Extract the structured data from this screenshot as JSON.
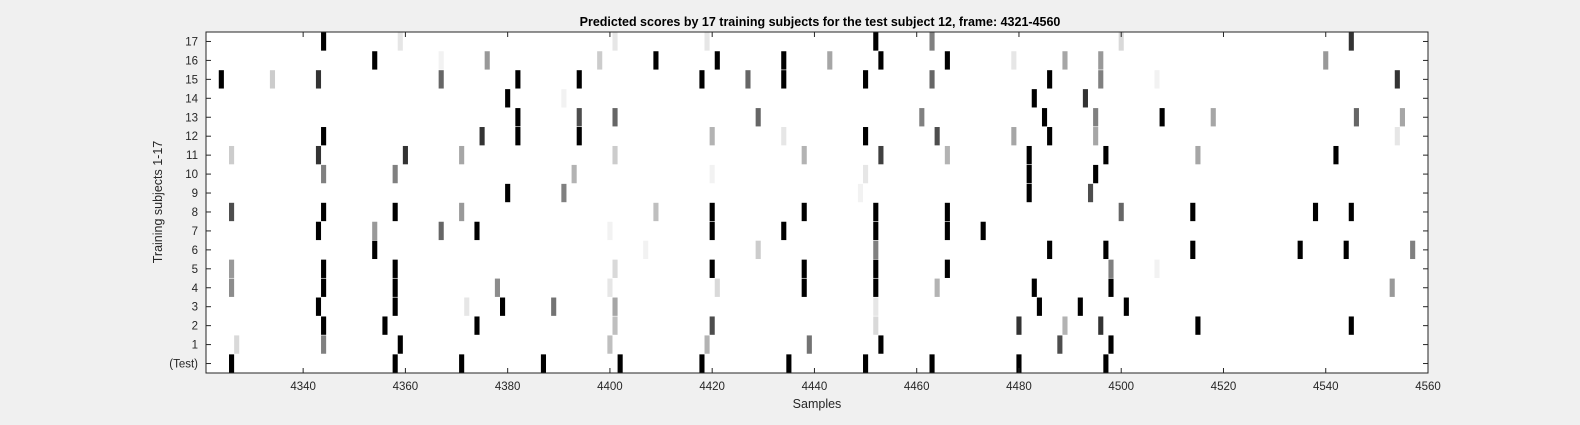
{
  "chart_data": {
    "type": "heatmap",
    "title": "Predicted scores by 17 training subjects for the test subject 12, frame: 4321-4560",
    "xlabel": "Samples",
    "ylabel": "Training subjects 1-17",
    "xlim": [
      4321,
      4560
    ],
    "x_ticks": [
      "4340",
      "4360",
      "4380",
      "4400",
      "4420",
      "4440",
      "4460",
      "4480",
      "4500",
      "4520",
      "4540",
      "4560"
    ],
    "y_labels": [
      "(Test)",
      "1",
      "2",
      "3",
      "4",
      "5",
      "6",
      "7",
      "8",
      "9",
      "10",
      "11",
      "12",
      "13",
      "14",
      "15",
      "16",
      "17"
    ],
    "colormap": "gray (1 = black, 0 = white)",
    "rows": [
      {
        "label": "(Test)",
        "x": [
          4326,
          4358,
          4371,
          4387,
          4402,
          4418,
          4435,
          4450,
          4463,
          4480,
          4497
        ],
        "v": [
          1,
          1,
          1,
          1,
          1,
          1,
          1,
          1,
          1,
          1,
          1
        ]
      },
      {
        "label": "1",
        "x": [
          4327,
          4344,
          4359,
          4400,
          4419,
          4439,
          4453,
          4488,
          4498
        ],
        "v": [
          0.15,
          0.5,
          1,
          0.25,
          0.3,
          0.55,
          1,
          0.7,
          1
        ]
      },
      {
        "label": "2",
        "x": [
          4344,
          4356,
          4374,
          4401,
          4420,
          4452,
          4480,
          4489,
          4496,
          4515,
          4545
        ],
        "v": [
          1,
          1,
          1,
          0.25,
          0.7,
          0.15,
          0.8,
          0.3,
          0.8,
          1,
          1
        ]
      },
      {
        "label": "3",
        "x": [
          4343,
          4358,
          4372,
          4379,
          4389,
          4401,
          4452,
          4484,
          4492,
          4501
        ],
        "v": [
          1,
          1,
          0.1,
          1,
          0.55,
          0.35,
          0.1,
          1,
          1,
          1
        ]
      },
      {
        "label": "4",
        "x": [
          4326,
          4344,
          4358,
          4378,
          4400,
          4421,
          4438,
          4452,
          4464,
          4483,
          4498,
          4553
        ],
        "v": [
          0.45,
          1,
          1,
          0.45,
          0.1,
          0.15,
          1,
          1,
          0.3,
          1,
          1,
          0.4
        ]
      },
      {
        "label": "5",
        "x": [
          4326,
          4344,
          4358,
          4401,
          4420,
          4438,
          4452,
          4466,
          4498,
          4507
        ],
        "v": [
          0.4,
          1,
          1,
          0.15,
          1,
          1,
          1,
          1,
          0.5,
          0.05
        ]
      },
      {
        "label": "6",
        "x": [
          4354,
          4407,
          4429,
          4452,
          4486,
          4497,
          4514,
          4535,
          4544,
          4557
        ],
        "v": [
          1,
          0.05,
          0.2,
          0.5,
          1,
          1,
          1,
          1,
          1,
          0.5
        ]
      },
      {
        "label": "7",
        "x": [
          4343,
          4354,
          4367,
          4374,
          4400,
          4420,
          4434,
          4452,
          4466,
          4473
        ],
        "v": [
          1,
          0.4,
          0.6,
          1,
          0.05,
          1,
          1,
          1,
          1,
          1
        ]
      },
      {
        "label": "8",
        "x": [
          4326,
          4344,
          4358,
          4371,
          4409,
          4420,
          4438,
          4452,
          4466,
          4500,
          4514,
          4538,
          4545
        ],
        "v": [
          0.7,
          1,
          1,
          0.4,
          0.25,
          1,
          1,
          1,
          1,
          0.6,
          1,
          1,
          1
        ]
      },
      {
        "label": "9",
        "x": [
          4380,
          4391,
          4449,
          4482,
          4494
        ],
        "v": [
          1,
          0.5,
          0.05,
          1,
          0.7
        ]
      },
      {
        "label": "10",
        "x": [
          4344,
          4358,
          4393,
          4420,
          4450,
          4482,
          4495
        ],
        "v": [
          0.5,
          0.5,
          0.3,
          0.05,
          0.1,
          1,
          1
        ]
      },
      {
        "label": "11",
        "x": [
          4326,
          4343,
          4360,
          4371,
          4401,
          4438,
          4453,
          4466,
          4482,
          4497,
          4515,
          4542
        ],
        "v": [
          0.2,
          0.8,
          0.8,
          0.35,
          0.2,
          0.3,
          0.75,
          0.3,
          1,
          1,
          0.35,
          1
        ]
      },
      {
        "label": "12",
        "x": [
          4344,
          4375,
          4382,
          4394,
          4420,
          4434,
          4450,
          4464,
          4479,
          4486,
          4495,
          4554
        ],
        "v": [
          1,
          0.8,
          1,
          1,
          0.3,
          0.1,
          1,
          0.7,
          0.35,
          1,
          0.35,
          0.1
        ]
      },
      {
        "label": "13",
        "x": [
          4382,
          4394,
          4401,
          4429,
          4461,
          4485,
          4495,
          4508,
          4518,
          4546,
          4555
        ],
        "v": [
          1,
          0.7,
          0.6,
          0.6,
          0.5,
          1,
          0.5,
          1,
          0.35,
          0.6,
          0.35
        ]
      },
      {
        "label": "14",
        "x": [
          4380,
          4391,
          4483,
          4493
        ],
        "v": [
          1,
          0.05,
          1,
          0.8
        ]
      },
      {
        "label": "15",
        "x": [
          4324,
          4334,
          4343,
          4367,
          4382,
          4394,
          4418,
          4427,
          4434,
          4450,
          4463,
          4486,
          4496,
          4507,
          4554
        ],
        "v": [
          1,
          0.2,
          0.8,
          0.6,
          1,
          1,
          1,
          0.6,
          1,
          1,
          0.6,
          1,
          0.5,
          0.05,
          0.8
        ]
      },
      {
        "label": "16",
        "x": [
          4354,
          4367,
          4376,
          4398,
          4409,
          4421,
          4434,
          4443,
          4453,
          4466,
          4479,
          4489,
          4496,
          4540
        ],
        "v": [
          1,
          0.05,
          0.4,
          0.2,
          1,
          1,
          1,
          0.35,
          1,
          1,
          0.1,
          0.35,
          0.4,
          0.4
        ]
      },
      {
        "label": "17",
        "x": [
          4344,
          4359,
          4401,
          4419,
          4452,
          4463,
          4500,
          4545
        ],
        "v": [
          1,
          0.1,
          0.1,
          0.1,
          1,
          0.5,
          0.15,
          0.8
        ]
      }
    ]
  }
}
